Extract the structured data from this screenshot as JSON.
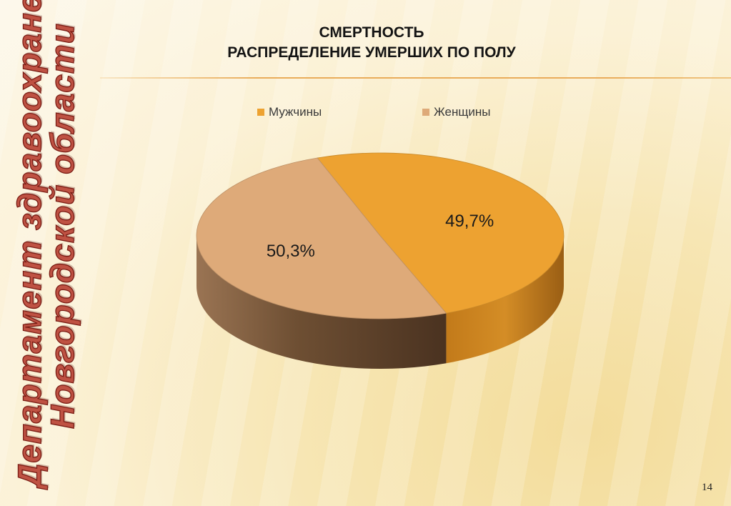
{
  "slide": {
    "title_line1": "СМЕРТНОСТЬ",
    "title_line2": "РАСПРЕДЕЛЕНИЕ УМЕРШИХ ПО ПОЛУ",
    "side_line1": "Департамент здравоохранения",
    "side_line2": "Новгородской области",
    "page_number": "14"
  },
  "chart_data": {
    "type": "pie",
    "labels": [
      "Мужчины",
      "Женщины"
    ],
    "values": [
      49.7,
      50.3
    ],
    "value_labels": [
      "49,7%",
      "50,3%"
    ],
    "colors": [
      "#eda231",
      "#deaa79"
    ],
    "legend_position": "top"
  }
}
